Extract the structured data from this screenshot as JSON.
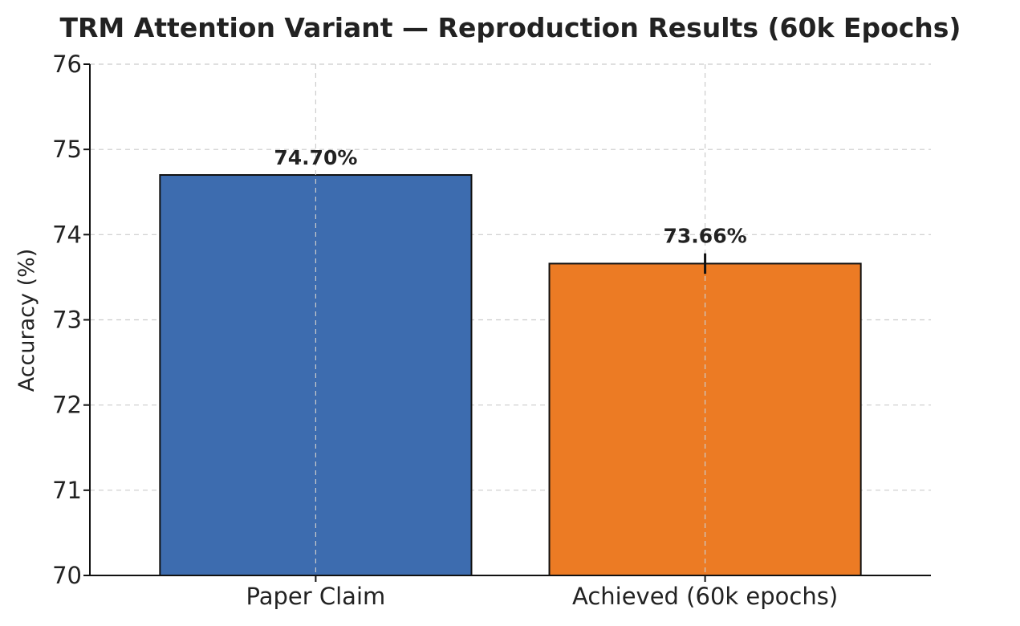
{
  "chart_data": {
    "type": "bar",
    "title": "TRM Attention Variant — Reproduction Results (60k Epochs)",
    "xlabel": "",
    "ylabel": "Accuracy (%)",
    "ylim": [
      70,
      76
    ],
    "yticks": [
      70,
      71,
      72,
      73,
      74,
      75,
      76
    ],
    "categories": [
      "Paper Claim",
      "Achieved (60k epochs)"
    ],
    "values": [
      74.7,
      73.66
    ],
    "value_labels": [
      "74.70%",
      "73.66%"
    ],
    "error": [
      null,
      0.12
    ],
    "colors": [
      "#3d6caf",
      "#ec7b24"
    ],
    "grid": true,
    "legend": "none"
  }
}
